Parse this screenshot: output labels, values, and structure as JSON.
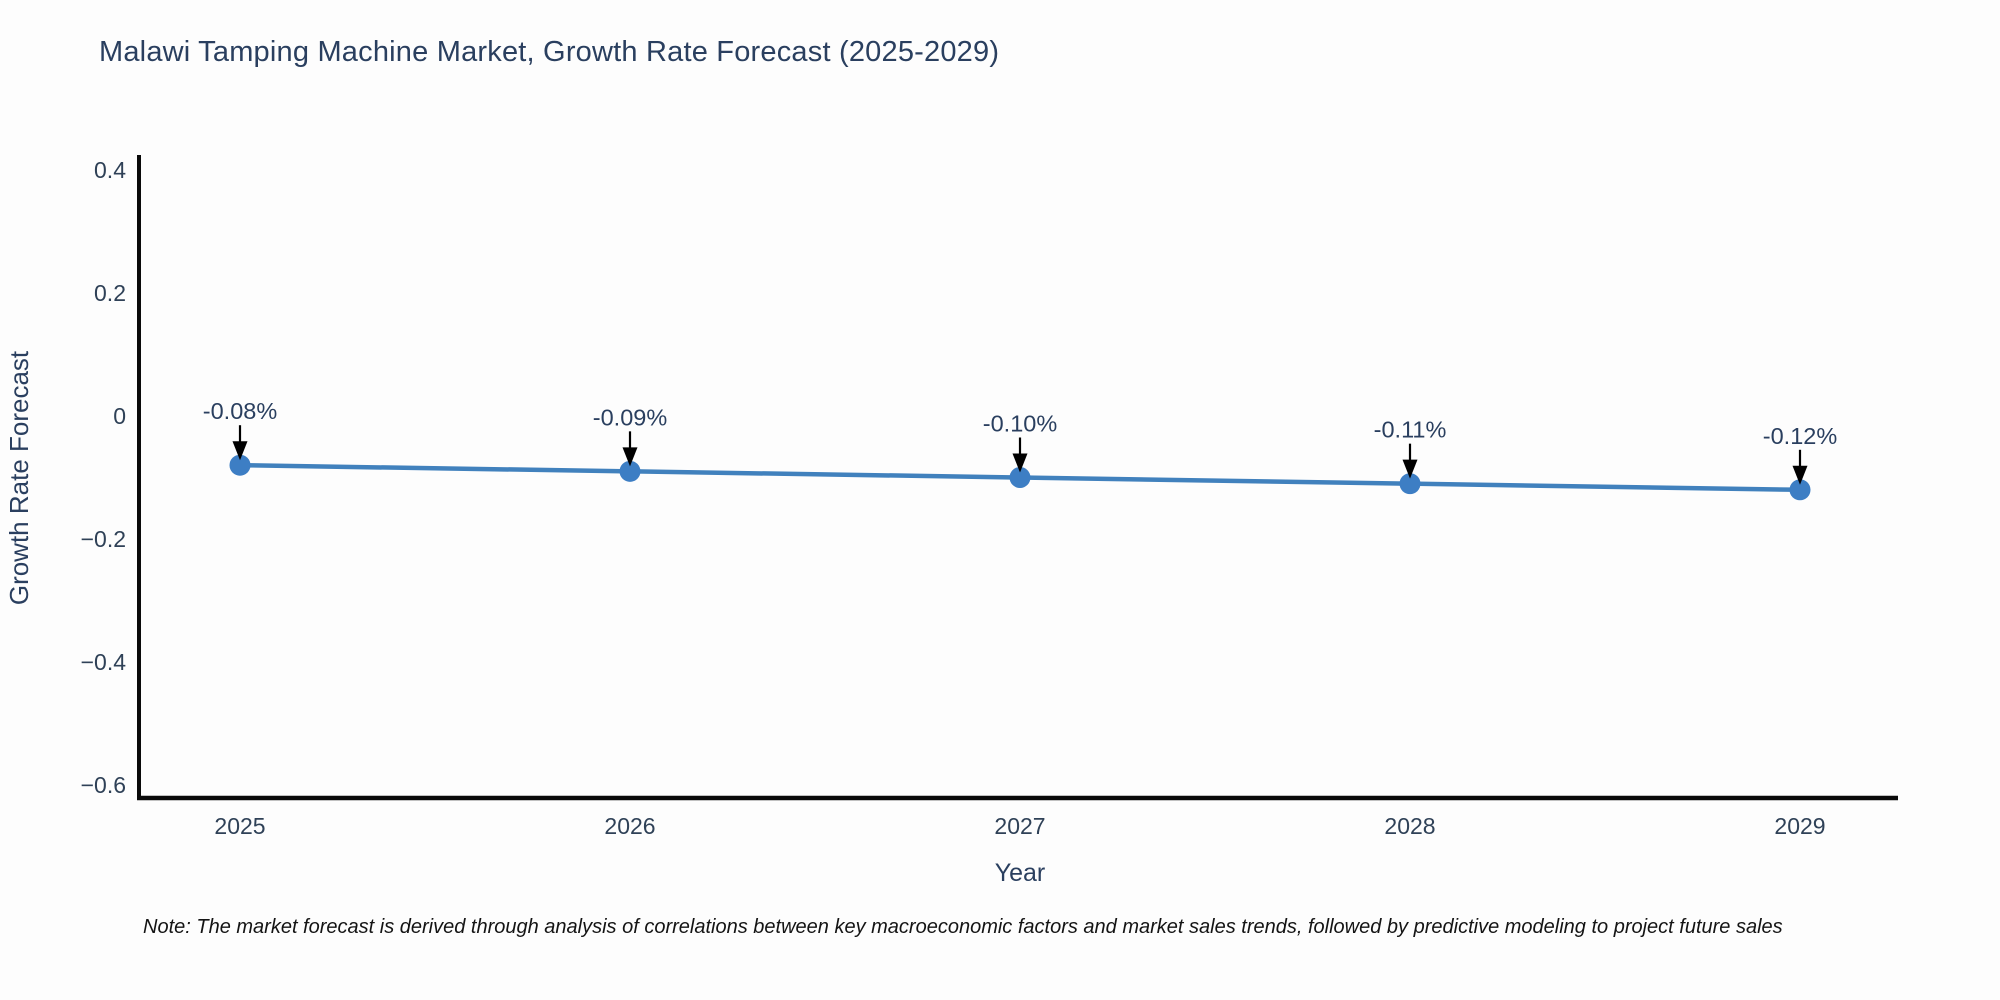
{
  "title": {
    "text": "Malawi Tamping Machine Market, Growth Rate Forecast (2025-2029)"
  },
  "note": {
    "text": "Note: The market forecast is derived through analysis of correlations between key macroeconomic factors and market sales trends, followed by predictive modeling to project future sales"
  },
  "chart_data": {
    "type": "line",
    "title": "Malawi Tamping Machine Market, Growth Rate Forecast (2025-2029)",
    "xlabel": "Year",
    "ylabel": "Growth Rate Forecast",
    "x": [
      2025,
      2026,
      2027,
      2028,
      2029
    ],
    "x_tick_labels": [
      "2025",
      "2026",
      "2027",
      "2028",
      "2029"
    ],
    "series": [
      {
        "name": "Growth Rate Forecast",
        "values": [
          -0.08,
          -0.09,
          -0.1,
          -0.11,
          -0.12
        ]
      }
    ],
    "point_annotations": [
      "-0.08%",
      "-0.09%",
      "-0.10%",
      "-0.11%",
      "-0.12%"
    ],
    "ylim": [
      -0.6,
      0.4
    ],
    "yticks": [
      0.4,
      0.2,
      0,
      -0.2,
      -0.4,
      -0.6
    ],
    "ytick_labels": [
      "0.4",
      "0.2",
      "0",
      "−0.2",
      "−0.4",
      "−0.6"
    ],
    "grid": false,
    "legend": false,
    "colors": {
      "line": "#4181bd",
      "marker": "#3d7ec4",
      "axis_line": "#0a0a0a",
      "tick_text": "#2f4157",
      "axis_label_text": "#2a3f5f",
      "annotation_text": "#2a3f5f",
      "annotation_arrow": "#000000"
    }
  }
}
